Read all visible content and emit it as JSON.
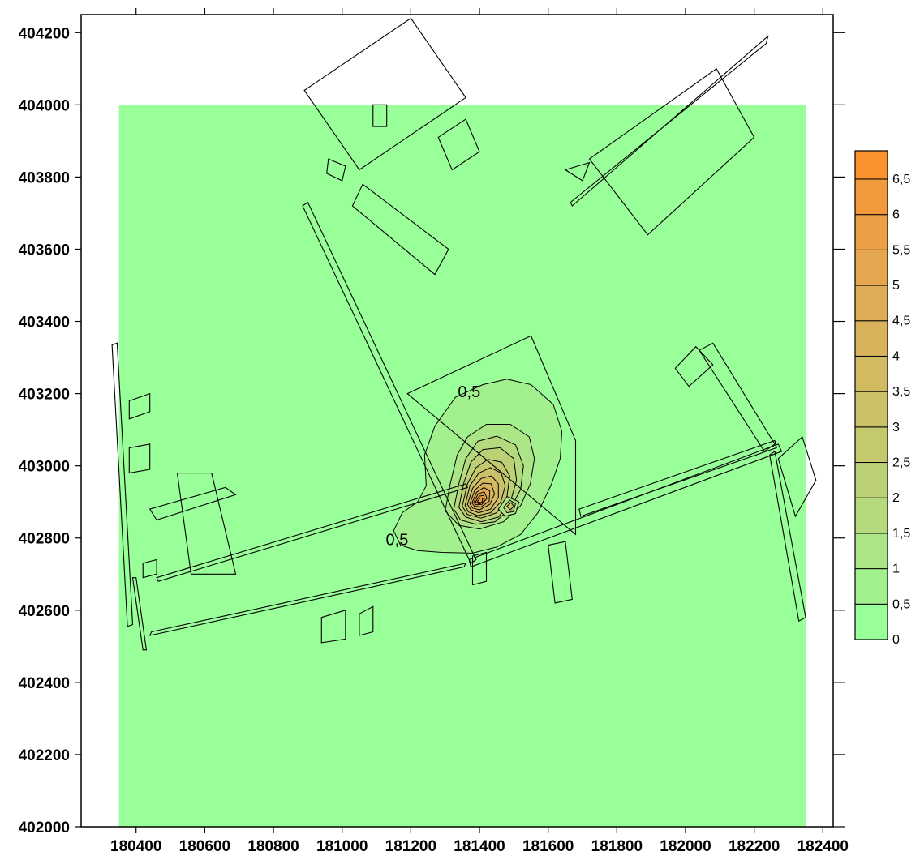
{
  "chart_data": {
    "type": "heatmap",
    "title": "",
    "xlabel": "",
    "ylabel": "",
    "xlim": [
      180240,
      182430
    ],
    "ylim": [
      402000,
      404250
    ],
    "x_ticks": [
      180400,
      180600,
      180800,
      181000,
      181200,
      181400,
      181600,
      181800,
      182000,
      182200,
      182400
    ],
    "x_tick_labels": [
      "180400",
      "180600",
      "180800",
      "181000",
      "181200",
      "181400",
      "181600",
      "181800",
      "182000",
      "182200",
      "182400"
    ],
    "y_ticks": [
      402000,
      402200,
      402400,
      402600,
      402800,
      403000,
      403200,
      403400,
      403600,
      403800,
      404000,
      404200
    ],
    "y_tick_labels": [
      "402000",
      "402200",
      "402400",
      "402600",
      "402800",
      "403000",
      "403200",
      "403400",
      "403600",
      "403800",
      "404000",
      "404200"
    ],
    "grid": false,
    "domain": {
      "x": [
        180350,
        182350
      ],
      "y": [
        402000,
        404000
      ]
    },
    "background_level": 0,
    "colorbar": {
      "position": "right",
      "levels": [
        0,
        0.5,
        1,
        1.5,
        2,
        2.5,
        3,
        3.5,
        4,
        4.5,
        5,
        5.5,
        6,
        6.5
      ],
      "labels": [
        "0",
        "0,5",
        "1",
        "1,5",
        "2",
        "2,5",
        "3",
        "3,5",
        "4",
        "4,5",
        "5",
        "5,5",
        "6",
        "6,5"
      ],
      "colors": [
        "#99ff99",
        "#a2f18e",
        "#abe585",
        "#b4da7d",
        "#bcd175",
        "#c4c96e",
        "#cbc168",
        "#d2ba62",
        "#d8b35c",
        "#dead55",
        "#e4a64e",
        "#eba045",
        "#f2993b",
        "#f89330"
      ],
      "max": 6.9
    },
    "peak": {
      "x": 181410,
      "y": 402880,
      "value": 6.9
    },
    "contour_labels": [
      {
        "text": "0,5",
        "x": 181370,
        "y": 403190
      },
      {
        "text": "0,5",
        "x": 181160,
        "y": 402780
      }
    ],
    "contours": [
      {
        "level": 0.5,
        "points": [
          [
            181170,
            402780
          ],
          [
            181150,
            402820
          ],
          [
            181175,
            402870
          ],
          [
            181220,
            402900
          ],
          [
            181245,
            402945
          ],
          [
            181240,
            403030
          ],
          [
            181270,
            403110
          ],
          [
            181330,
            403190
          ],
          [
            181410,
            403225
          ],
          [
            181480,
            403240
          ],
          [
            181550,
            403225
          ],
          [
            181615,
            403170
          ],
          [
            181640,
            403095
          ],
          [
            181635,
            403020
          ],
          [
            181610,
            402950
          ],
          [
            181570,
            402870
          ],
          [
            181520,
            402810
          ],
          [
            181450,
            402775
          ],
          [
            181380,
            402758
          ],
          [
            181290,
            402760
          ],
          [
            181220,
            402765
          ]
        ]
      },
      {
        "level": 1,
        "points": [
          [
            181300,
            402875
          ],
          [
            181315,
            402950
          ],
          [
            181335,
            403030
          ],
          [
            181365,
            403080
          ],
          [
            181420,
            403115
          ],
          [
            181490,
            403115
          ],
          [
            181545,
            403080
          ],
          [
            181560,
            403020
          ],
          [
            181548,
            402950
          ],
          [
            181520,
            402890
          ],
          [
            181470,
            402845
          ],
          [
            181400,
            402825
          ],
          [
            181340,
            402835
          ]
        ]
      },
      {
        "level": 1.5,
        "points": [
          [
            181325,
            402880
          ],
          [
            181340,
            402950
          ],
          [
            181360,
            403020
          ],
          [
            181395,
            403068
          ],
          [
            181450,
            403082
          ],
          [
            181505,
            403058
          ],
          [
            181528,
            403000
          ],
          [
            181520,
            402935
          ],
          [
            181490,
            402880
          ],
          [
            181445,
            402845
          ],
          [
            181390,
            402838
          ],
          [
            181345,
            402850
          ]
        ]
      },
      {
        "level": 2,
        "points": [
          [
            181340,
            402885
          ],
          [
            181355,
            402955
          ],
          [
            181375,
            403010
          ],
          [
            181410,
            403045
          ],
          [
            181460,
            403050
          ],
          [
            181500,
            403020
          ],
          [
            181508,
            402960
          ],
          [
            181490,
            402900
          ],
          [
            181455,
            402858
          ],
          [
            181405,
            402845
          ],
          [
            181360,
            402858
          ]
        ]
      },
      {
        "level": 2.5,
        "points": [
          [
            181350,
            402888
          ],
          [
            181365,
            402950
          ],
          [
            181390,
            402995
          ],
          [
            181425,
            403018
          ],
          [
            181465,
            403010
          ],
          [
            181488,
            402972
          ],
          [
            181480,
            402915
          ],
          [
            181450,
            402870
          ],
          [
            181405,
            402855
          ],
          [
            181365,
            402865
          ]
        ]
      },
      {
        "level": 3,
        "points": [
          [
            181358,
            402890
          ],
          [
            181372,
            402945
          ],
          [
            181398,
            402980
          ],
          [
            181432,
            402995
          ],
          [
            181463,
            402980
          ],
          [
            181475,
            402945
          ],
          [
            181462,
            402900
          ],
          [
            181432,
            402870
          ],
          [
            181395,
            402862
          ],
          [
            181368,
            402872
          ]
        ]
      },
      {
        "level": 3.5,
        "points": [
          [
            181365,
            402893
          ],
          [
            181380,
            402938
          ],
          [
            181405,
            402965
          ],
          [
            181435,
            402972
          ],
          [
            181455,
            402950
          ],
          [
            181455,
            402912
          ],
          [
            181432,
            402880
          ],
          [
            181398,
            402870
          ],
          [
            181375,
            402878
          ]
        ]
      },
      {
        "level": 4,
        "points": [
          [
            181372,
            402895
          ],
          [
            181386,
            402932
          ],
          [
            181410,
            402952
          ],
          [
            181434,
            402950
          ],
          [
            181444,
            402922
          ],
          [
            181430,
            402893
          ],
          [
            181400,
            402878
          ],
          [
            181380,
            402883
          ]
        ]
      },
      {
        "level": 4.5,
        "points": [
          [
            181378,
            402897
          ],
          [
            181392,
            402927
          ],
          [
            181413,
            402940
          ],
          [
            181430,
            402930
          ],
          [
            181428,
            402902
          ],
          [
            181405,
            402886
          ],
          [
            181385,
            402888
          ]
        ]
      },
      {
        "level": 5,
        "points": [
          [
            181383,
            402898
          ],
          [
            181396,
            402922
          ],
          [
            181414,
            402928
          ],
          [
            181422,
            402910
          ],
          [
            181407,
            402893
          ],
          [
            181390,
            402892
          ]
        ]
      },
      {
        "level": 5.5,
        "points": [
          [
            181388,
            402899
          ],
          [
            181399,
            402916
          ],
          [
            181413,
            402918
          ],
          [
            181414,
            402903
          ],
          [
            181400,
            402894
          ]
        ]
      },
      {
        "level": 6,
        "points": [
          [
            181393,
            402900
          ],
          [
            181402,
            402911
          ],
          [
            181410,
            402909
          ],
          [
            181406,
            402898
          ]
        ]
      },
      {
        "level": 1,
        "points": [
          [
            181455,
            402880
          ],
          [
            181480,
            402915
          ],
          [
            181515,
            402900
          ],
          [
            181505,
            402868
          ],
          [
            181475,
            402860
          ]
        ]
      },
      {
        "level": 2,
        "points": [
          [
            181470,
            402885
          ],
          [
            181488,
            402905
          ],
          [
            181505,
            402895
          ],
          [
            181498,
            402873
          ],
          [
            181480,
            402870
          ]
        ]
      },
      {
        "level": 3,
        "points": [
          [
            181480,
            402888
          ],
          [
            181492,
            402898
          ],
          [
            181500,
            402888
          ],
          [
            181490,
            402878
          ]
        ]
      }
    ],
    "outlines": [
      [
        [
          180890,
          404040
        ],
        [
          181200,
          404240
        ],
        [
          181360,
          404020
        ],
        [
          181050,
          403820
        ]
      ],
      [
        [
          181060,
          403780
        ],
        [
          181310,
          403600
        ],
        [
          181270,
          403530
        ],
        [
          181030,
          403720
        ]
      ],
      [
        [
          181090,
          404000
        ],
        [
          181130,
          404000
        ],
        [
          181130,
          403940
        ],
        [
          181090,
          403940
        ]
      ],
      [
        [
          181280,
          403910
        ],
        [
          181360,
          403960
        ],
        [
          181400,
          403870
        ],
        [
          181320,
          403820
        ]
      ],
      [
        [
          180960,
          403850
        ],
        [
          181010,
          403830
        ],
        [
          181000,
          403790
        ],
        [
          180955,
          403810
        ]
      ],
      [
        [
          181670,
          403720
        ],
        [
          182240,
          404190
        ],
        [
          182235,
          404170
        ],
        [
          181665,
          403730
        ]
      ],
      [
        [
          181720,
          403850
        ],
        [
          182090,
          404100
        ],
        [
          182200,
          403910
        ],
        [
          181890,
          403640
        ]
      ],
      [
        [
          181650,
          403820
        ],
        [
          181720,
          403840
        ],
        [
          181700,
          403790
        ]
      ],
      [
        [
          180900,
          403730
        ],
        [
          181390,
          402740
        ],
        [
          181375,
          402730
        ],
        [
          180885,
          403720
        ]
      ],
      [
        [
          181190,
          403200
        ],
        [
          181550,
          403360
        ],
        [
          181680,
          403070
        ],
        [
          181680,
          402810
        ]
      ],
      [
        [
          180460,
          402690
        ],
        [
          181360,
          402950
        ],
        [
          181365,
          402940
        ],
        [
          180465,
          402680
        ]
      ],
      [
        [
          180445,
          402540
        ],
        [
          181360,
          402730
        ],
        [
          181355,
          402720
        ],
        [
          180440,
          402530
        ]
      ],
      [
        [
          180345,
          403340
        ],
        [
          180390,
          402560
        ],
        [
          180375,
          402555
        ],
        [
          180330,
          403335
        ]
      ],
      [
        [
          180400,
          402690
        ],
        [
          180430,
          402490
        ],
        [
          180420,
          402490
        ],
        [
          180390,
          402690
        ]
      ],
      [
        [
          180460,
          402850
        ],
        [
          180690,
          402920
        ],
        [
          180660,
          402940
        ],
        [
          180440,
          402880
        ]
      ],
      [
        [
          180520,
          402980
        ],
        [
          180620,
          402980
        ],
        [
          180690,
          402700
        ],
        [
          180560,
          402700
        ]
      ],
      [
        [
          180380,
          403050
        ],
        [
          180440,
          403060
        ],
        [
          180440,
          402990
        ],
        [
          180380,
          402980
        ]
      ],
      [
        [
          180380,
          403180
        ],
        [
          180440,
          403200
        ],
        [
          180440,
          403150
        ],
        [
          180380,
          403130
        ]
      ],
      [
        [
          180420,
          402730
        ],
        [
          180460,
          402740
        ],
        [
          180460,
          402700
        ],
        [
          180420,
          402690
        ]
      ],
      [
        [
          181370,
          402740
        ],
        [
          182270,
          403060
        ],
        [
          182280,
          403040
        ],
        [
          181375,
          402720
        ]
      ],
      [
        [
          181690,
          402880
        ],
        [
          182260,
          403070
        ],
        [
          182265,
          403050
        ],
        [
          181695,
          402860
        ]
      ],
      [
        [
          182040,
          403320
        ],
        [
          182080,
          403340
        ],
        [
          182260,
          403060
        ],
        [
          182230,
          403040
        ]
      ],
      [
        [
          181970,
          403270
        ],
        [
          182030,
          403330
        ],
        [
          182080,
          403280
        ],
        [
          182010,
          403220
        ]
      ],
      [
        [
          182260,
          403040
        ],
        [
          182350,
          402580
        ],
        [
          182330,
          402570
        ],
        [
          182245,
          403030
        ]
      ],
      [
        [
          182270,
          403020
        ],
        [
          182340,
          403080
        ],
        [
          182380,
          402960
        ],
        [
          182320,
          402860
        ]
      ],
      [
        [
          181600,
          402780
        ],
        [
          181650,
          402790
        ],
        [
          181670,
          402630
        ],
        [
          181620,
          402620
        ]
      ],
      [
        [
          181380,
          402750
        ],
        [
          181420,
          402760
        ],
        [
          181420,
          402680
        ],
        [
          181380,
          402670
        ]
      ],
      [
        [
          180940,
          402580
        ],
        [
          181010,
          402600
        ],
        [
          181010,
          402520
        ],
        [
          180940,
          402510
        ]
      ],
      [
        [
          181050,
          402590
        ],
        [
          181090,
          402610
        ],
        [
          181090,
          402540
        ],
        [
          181050,
          402530
        ]
      ]
    ]
  }
}
